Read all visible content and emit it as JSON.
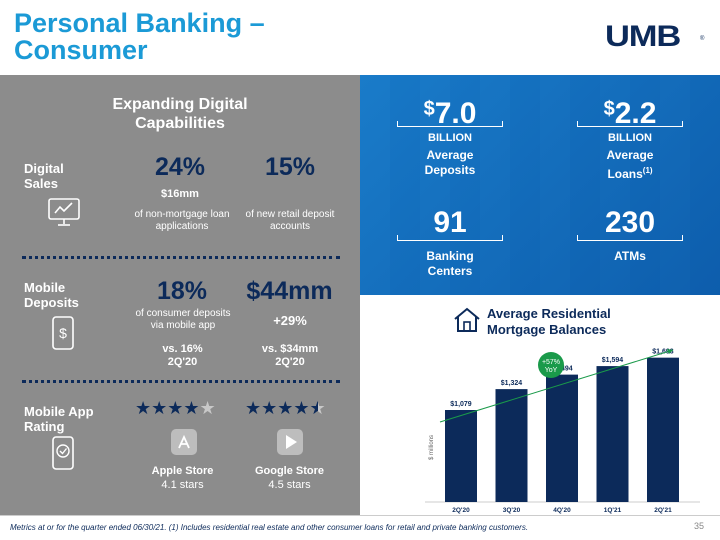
{
  "title_line1": "Personal Banking –",
  "title_line2": "Consumer",
  "logo": "UMB",
  "logo_mark": "®",
  "left": {
    "header": "Expanding Digital Capabilities",
    "digital_sales": {
      "label": "Digital Sales",
      "stat1": "24%",
      "stat1_sub": "$16mm",
      "stat1_desc": "of non-mortgage loan applications",
      "stat2": "15%",
      "stat2_desc": "of new retail deposit accounts"
    },
    "mobile_deposits": {
      "label": "Mobile Deposits",
      "stat1": "18%",
      "stat1_desc": "of consumer deposits via mobile app",
      "stat1_vs": "vs. 16% 2Q'20",
      "stat2": "$44mm",
      "stat2_sub": "+29%",
      "stat2_vs": "vs. $34mm 2Q'20"
    },
    "app_rating": {
      "label": "Mobile App Rating",
      "apple_label": "Apple Store",
      "apple_stars": "4.1 stars",
      "apple_rating": 4.1,
      "google_label": "Google Store",
      "google_stars": "4.5 stars",
      "google_rating": 4.5
    }
  },
  "kpis": {
    "deposits": {
      "currency": "$",
      "value": "7.0",
      "unit": "BILLION",
      "label": "Average Deposits"
    },
    "loans": {
      "currency": "$",
      "value": "2.2",
      "unit": "BILLION",
      "label": "Average Loans",
      "note": "(1)"
    },
    "centers": {
      "value": "91",
      "label": "Banking Centers"
    },
    "atms": {
      "value": "230",
      "label": "ATMs"
    }
  },
  "chart_data": {
    "type": "bar",
    "title": "Average Residential Mortgage Balances",
    "ylabel": "$ millions",
    "categories": [
      "2Q'20",
      "3Q'20",
      "4Q'20",
      "1Q'21",
      "2Q'21"
    ],
    "values": [
      1079,
      1324,
      1494,
      1594,
      1693
    ],
    "value_labels": [
      "$1,079",
      "$1,324",
      "$1,494",
      "$1,594",
      "$1,693"
    ],
    "ylim": [
      0,
      1900
    ],
    "annotation": "+57% YoY",
    "bar_color": "#0c2a5a",
    "trend_color": "#1a9a4a"
  },
  "footer": "Metrics at or for the quarter ended 06/30/21. (1) Includes residential real estate and other consumer loans for retail and private banking customers.",
  "page_number": "35"
}
